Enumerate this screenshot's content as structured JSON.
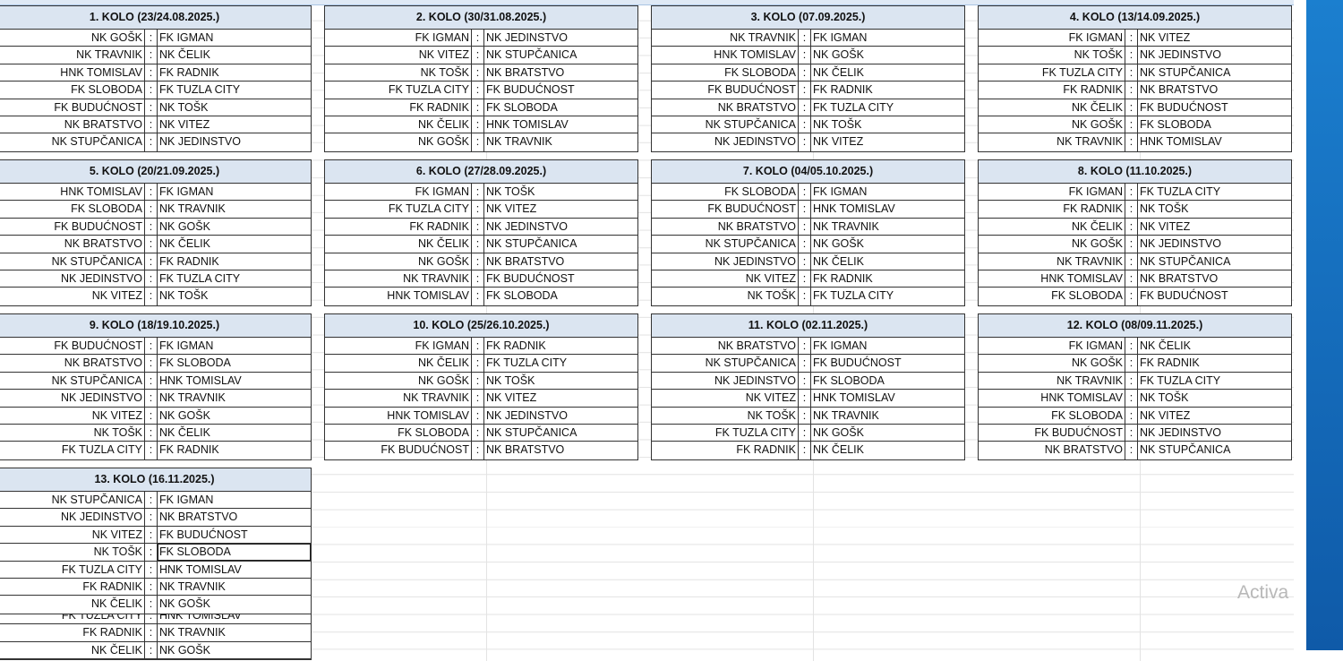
{
  "colors": {
    "header_bg": "#dbe5f1",
    "side_panel": "#1b7fcf",
    "watermark": "#b8b8b8"
  },
  "separator": ":",
  "rounds": [
    {
      "title": "1. KOLO (23/24.08.2025.)",
      "matches": [
        [
          "NK GOŠK",
          "FK IGMAN"
        ],
        [
          "NK TRAVNIK",
          "NK ČELIK"
        ],
        [
          "HNK TOMISLAV",
          "FK RADNIK"
        ],
        [
          "FK SLOBODA",
          "FK TUZLA CITY"
        ],
        [
          "FK BUDUĆNOST",
          "NK TOŠK"
        ],
        [
          "NK BRATSTVO",
          "NK VITEZ"
        ],
        [
          "NK STUPČANICA",
          "NK JEDINSTVO"
        ]
      ]
    },
    {
      "title": "2. KOLO (30/31.08.2025.)",
      "matches": [
        [
          "FK IGMAN",
          "NK JEDINSTVO"
        ],
        [
          "NK VITEZ",
          "NK STUPČANICA"
        ],
        [
          "NK TOŠK",
          "NK BRATSTVO"
        ],
        [
          "FK TUZLA CITY",
          "FK BUDUĆNOST"
        ],
        [
          "FK RADNIK",
          "FK SLOBODA"
        ],
        [
          "NK ČELIK",
          "HNK TOMISLAV"
        ],
        [
          "NK GOŠK",
          "NK TRAVNIK"
        ]
      ]
    },
    {
      "title": "3. KOLO (07.09.2025.)",
      "matches": [
        [
          "NK TRAVNIK",
          "FK IGMAN"
        ],
        [
          "HNK TOMISLAV",
          "NK GOŠK"
        ],
        [
          "FK SLOBODA",
          "NK ČELIK"
        ],
        [
          "FK BUDUĆNOST",
          "FK RADNIK"
        ],
        [
          "NK BRATSTVO",
          "FK TUZLA CITY"
        ],
        [
          "NK STUPČANICA",
          "NK TOŠK"
        ],
        [
          "NK JEDINSTVO",
          "NK VITEZ"
        ]
      ]
    },
    {
      "title": "4. KOLO (13/14.09.2025.)",
      "matches": [
        [
          "FK IGMAN",
          "NK VITEZ"
        ],
        [
          "NK TOŠK",
          "NK JEDINSTVO"
        ],
        [
          "FK TUZLA CITY",
          "NK STUPČANICA"
        ],
        [
          "FK RADNIK",
          "NK BRATSTVO"
        ],
        [
          "NK ČELIK",
          "FK BUDUĆNOST"
        ],
        [
          "NK GOŠK",
          "FK SLOBODA"
        ],
        [
          "NK TRAVNIK",
          "HNK TOMISLAV"
        ]
      ]
    },
    {
      "title": "5. KOLO (20/21.09.2025.)",
      "matches": [
        [
          "HNK TOMISLAV",
          "FK IGMAN"
        ],
        [
          "FK SLOBODA",
          "NK TRAVNIK"
        ],
        [
          "FK BUDUĆNOST",
          "NK GOŠK"
        ],
        [
          "NK BRATSTVO",
          "NK ČELIK"
        ],
        [
          "NK STUPČANICA",
          "FK RADNIK"
        ],
        [
          "NK JEDINSTVO",
          "FK TUZLA CITY"
        ],
        [
          "NK VITEZ",
          "NK TOŠK"
        ]
      ]
    },
    {
      "title": "6. KOLO (27/28.09.2025.)",
      "matches": [
        [
          "FK IGMAN",
          "NK TOŠK"
        ],
        [
          "FK TUZLA CITY",
          "NK VITEZ"
        ],
        [
          "FK RADNIK",
          "NK JEDINSTVO"
        ],
        [
          "NK ČELIK",
          "NK STUPČANICA"
        ],
        [
          "NK GOŠK",
          "NK BRATSTVO"
        ],
        [
          "NK TRAVNIK",
          "FK BUDUĆNOST"
        ],
        [
          "HNK TOMISLAV",
          "FK SLOBODA"
        ]
      ]
    },
    {
      "title": "7. KOLO (04/05.10.2025.)",
      "matches": [
        [
          "FK SLOBODA",
          "FK IGMAN"
        ],
        [
          "FK BUDUĆNOST",
          "HNK TOMISLAV"
        ],
        [
          "NK BRATSTVO",
          "NK TRAVNIK"
        ],
        [
          "NK STUPČANICA",
          "NK GOŠK"
        ],
        [
          "NK JEDINSTVO",
          "NK ČELIK"
        ],
        [
          "NK VITEZ",
          "FK RADNIK"
        ],
        [
          "NK TOŠK",
          "FK TUZLA CITY"
        ]
      ]
    },
    {
      "title": "8. KOLO (11.10.2025.)",
      "matches": [
        [
          "FK IGMAN",
          "FK TUZLA CITY"
        ],
        [
          "FK RADNIK",
          "NK TOŠK"
        ],
        [
          "NK ČELIK",
          "NK VITEZ"
        ],
        [
          "NK GOŠK",
          "NK JEDINSTVO"
        ],
        [
          "NK TRAVNIK",
          "NK STUPČANICA"
        ],
        [
          "HNK TOMISLAV",
          "NK BRATSTVO"
        ],
        [
          "FK SLOBODA",
          "FK BUDUĆNOST"
        ]
      ]
    },
    {
      "title": "9. KOLO (18/19.10.2025.)",
      "matches": [
        [
          "FK BUDUĆNOST",
          "FK IGMAN"
        ],
        [
          "NK BRATSTVO",
          "FK SLOBODA"
        ],
        [
          "NK STUPČANICA",
          "HNK TOMISLAV"
        ],
        [
          "NK JEDINSTVO",
          "NK TRAVNIK"
        ],
        [
          "NK VITEZ",
          "NK GOŠK"
        ],
        [
          "NK TOŠK",
          "NK ČELIK"
        ],
        [
          "FK TUZLA CITY",
          "FK RADNIK"
        ]
      ]
    },
    {
      "title": "10. KOLO (25/26.10.2025.)",
      "matches": [
        [
          "FK IGMAN",
          "FK RADNIK"
        ],
        [
          "NK ČELIK",
          "FK TUZLA CITY"
        ],
        [
          "NK GOŠK",
          "NK TOŠK"
        ],
        [
          "NK TRAVNIK",
          "NK VITEZ"
        ],
        [
          "HNK TOMISLAV",
          "NK JEDINSTVO"
        ],
        [
          "FK SLOBODA",
          "NK STUPČANICA"
        ],
        [
          "FK BUDUĆNOST",
          "NK BRATSTVO"
        ]
      ]
    },
    {
      "title": "11. KOLO (02.11.2025.)",
      "matches": [
        [
          "NK BRATSTVO",
          "FK IGMAN"
        ],
        [
          "NK STUPČANICA",
          "FK BUDUĆNOST"
        ],
        [
          "NK JEDINSTVO",
          "FK SLOBODA"
        ],
        [
          "NK VITEZ",
          "HNK TOMISLAV"
        ],
        [
          "NK TOŠK",
          "NK TRAVNIK"
        ],
        [
          "FK TUZLA CITY",
          "NK GOŠK"
        ],
        [
          "FK RADNIK",
          "NK ČELIK"
        ]
      ]
    },
    {
      "title": "12. KOLO (08/09.11.2025.)",
      "matches": [
        [
          "FK IGMAN",
          "NK ČELIK"
        ],
        [
          "NK GOŠK",
          "FK RADNIK"
        ],
        [
          "NK TRAVNIK",
          "FK TUZLA CITY"
        ],
        [
          "HNK TOMISLAV",
          "NK TOŠK"
        ],
        [
          "FK SLOBODA",
          "NK VITEZ"
        ],
        [
          "FK BUDUĆNOST",
          "NK JEDINSTVO"
        ],
        [
          "NK BRATSTVO",
          "NK STUPČANICA"
        ]
      ]
    },
    {
      "title": "13. KOLO (16.11.2025.)",
      "matches": [
        [
          "NK STUPČANICA",
          "FK IGMAN"
        ],
        [
          "NK JEDINSTVO",
          "NK BRATSTVO"
        ],
        [
          "NK VITEZ",
          "FK BUDUĆNOST"
        ],
        [
          "NK TOŠK",
          "FK SLOBODA"
        ],
        [
          "FK TUZLA CITY",
          "HNK TOMISLAV"
        ],
        [
          "FK RADNIK",
          "NK TRAVNIK"
        ],
        [
          "NK ČELIK",
          "NK GOŠK"
        ]
      ]
    }
  ],
  "ghost_rows": [
    [
      "FK TUZLA CITY",
      "HNK TOMISLAV"
    ],
    [
      "FK RADNIK",
      "NK TRAVNIK"
    ],
    [
      "NK ČELIK",
      "NK GOŠK"
    ]
  ],
  "watermark": "Activa"
}
